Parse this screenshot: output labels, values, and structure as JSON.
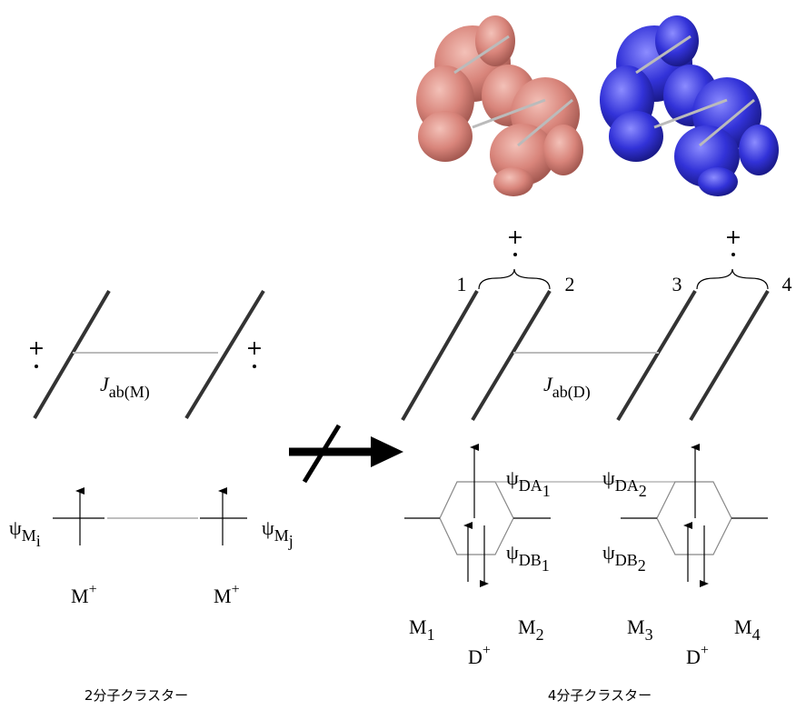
{
  "left": {
    "plus_left": "+",
    "plus_right": "+",
    "coupling": {
      "symbol": "J",
      "sub": "ab(M)"
    },
    "orbitals": [
      {
        "symbol": "ψ",
        "sub": "M",
        "subsub": "i"
      },
      {
        "symbol": "ψ",
        "sub": "M",
        "subsub": "j"
      }
    ],
    "ions": [
      {
        "text": "M",
        "sup": "+"
      },
      {
        "text": "M",
        "sup": "+"
      }
    ],
    "caption": "2分子クラスター"
  },
  "right": {
    "plus_labels": [
      "+",
      "+"
    ],
    "numbers": [
      "1",
      "2",
      "3",
      "4"
    ],
    "coupling": {
      "symbol": "J",
      "sub": "ab(D)"
    },
    "orbitals": [
      {
        "symbol": "ψ",
        "sub": "DA",
        "subsub": "1"
      },
      {
        "symbol": "ψ",
        "sub": "DB",
        "subsub": "1"
      },
      {
        "symbol": "ψ",
        "sub": "DA",
        "subsub": "2"
      },
      {
        "symbol": "ψ",
        "sub": "DB",
        "subsub": "2"
      }
    ],
    "molecules": [
      {
        "text": "M",
        "sub": "1"
      },
      {
        "text": "M",
        "sub": "2"
      },
      {
        "text": "M",
        "sub": "3"
      },
      {
        "text": "M",
        "sub": "4"
      }
    ],
    "donors": [
      {
        "text": "D",
        "sup": "+"
      },
      {
        "text": "D",
        "sup": "+"
      }
    ],
    "caption": "4分子クラスター"
  }
}
